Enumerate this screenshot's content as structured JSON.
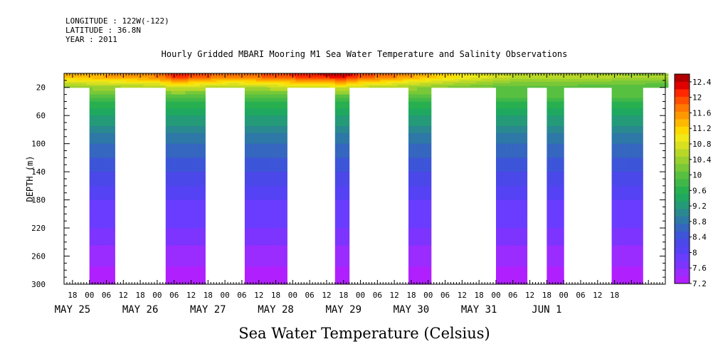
{
  "header": {
    "longitude": "LONGITUDE : 122W(-122)",
    "latitude": "LATITUDE : 36.8N",
    "year": "YEAR : 2011"
  },
  "chart_data": {
    "type": "heatmap",
    "title": "Hourly Gridded MBARI Mooring M1 Sea Water Temperature and Salinity Observations",
    "xlabel": "",
    "ylabel": "DEPTH (m)",
    "colorbar_label": "Sea Water Temperature (Celsius)",
    "x_hour_ticks": [
      "18",
      "00",
      "06",
      "12",
      "18",
      "00",
      "06",
      "12",
      "18",
      "00",
      "06",
      "12",
      "18",
      "00",
      "06",
      "12",
      "18",
      "00",
      "06",
      "12",
      "18",
      "00",
      "06",
      "12",
      "18",
      "00",
      "06",
      "12",
      "18",
      "00",
      "06",
      "12",
      "18"
    ],
    "x_date_labels": [
      "MAY 25",
      "MAY 26",
      "MAY 27",
      "MAY 28",
      "MAY 29",
      "MAY 30",
      "MAY 31",
      "JUN  1"
    ],
    "x_range_hours": [
      -9,
      204
    ],
    "ylim": [
      300,
      0
    ],
    "y_ticks": [
      "20",
      "60",
      "100",
      "140",
      "180",
      "220",
      "260",
      "300"
    ],
    "y_values": [
      20,
      60,
      100,
      140,
      180,
      220,
      260,
      300
    ],
    "colorbar": {
      "levels": [
        7.2,
        7.4,
        7.6,
        7.8,
        8.0,
        8.2,
        8.4,
        8.6,
        8.8,
        9.0,
        9.2,
        9.4,
        9.6,
        9.8,
        10.0,
        10.2,
        10.4,
        10.6,
        10.8,
        11.0,
        11.2,
        11.4,
        11.6,
        11.8,
        12.0,
        12.2,
        12.4,
        12.6
      ],
      "labels": [
        "12.4",
        "12",
        "11.6",
        "11.2",
        "10.8",
        "10.4",
        "10",
        "9.6",
        "9.2",
        "8.8",
        "8.4",
        "8",
        "7.6",
        "7.2"
      ],
      "colors": [
        "#b020ff",
        "#9b2cff",
        "#7d34ff",
        "#6a3cff",
        "#5542f5",
        "#4a48e8",
        "#3d55d8",
        "#3566c0",
        "#2e78a8",
        "#2a8890",
        "#249a78",
        "#1ea860",
        "#28b050",
        "#40b848",
        "#58c040",
        "#78c838",
        "#98d030",
        "#b8d828",
        "#d8e020",
        "#f0e818",
        "#ffd800",
        "#ffb800",
        "#ff9800",
        "#ff7800",
        "#ff5000",
        "#ff2800",
        "#e00000",
        "#b00000"
      ]
    },
    "data_segments": [
      {
        "start_hour": 0,
        "end_hour": 9,
        "top_depth": 5
      },
      {
        "start_hour": 27,
        "end_hour": 41,
        "top_depth": 5
      },
      {
        "start_hour": 55,
        "end_hour": 70,
        "top_depth": 5
      },
      {
        "start_hour": 87,
        "end_hour": 92,
        "top_depth": 5
      },
      {
        "start_hour": 113,
        "end_hour": 121,
        "top_depth": 5
      },
      {
        "start_hour": 144,
        "end_hour": 155,
        "top_depth": 5
      },
      {
        "start_hour": 162,
        "end_hour": 168,
        "top_depth": 5
      },
      {
        "start_hour": 185,
        "end_hour": 196,
        "top_depth": 5
      }
    ],
    "surface_temperature_series": [
      {
        "hour": -9,
        "value": 11.4
      },
      {
        "hour": 24,
        "value": 11.8
      },
      {
        "hour": 30,
        "value": 12.4
      },
      {
        "hour": 50,
        "value": 11.8
      },
      {
        "hour": 90,
        "value": 12.6
      },
      {
        "hour": 96,
        "value": 12.2
      },
      {
        "hour": 120,
        "value": 11.4
      },
      {
        "hour": 150,
        "value": 10.6
      },
      {
        "hour": 170,
        "value": 10.6
      },
      {
        "hour": 204,
        "value": 10.4
      }
    ],
    "depth_profile": [
      {
        "depth": 5,
        "value": 11.8
      },
      {
        "depth": 12,
        "value": 11.2
      },
      {
        "depth": 20,
        "value": 10.6
      },
      {
        "depth": 40,
        "value": 9.8
      },
      {
        "depth": 60,
        "value": 9.4
      },
      {
        "depth": 100,
        "value": 8.8
      },
      {
        "depth": 140,
        "value": 8.4
      },
      {
        "depth": 180,
        "value": 8.0
      },
      {
        "depth": 220,
        "value": 7.8
      },
      {
        "depth": 260,
        "value": 7.5
      },
      {
        "depth": 300,
        "value": 7.2
      }
    ]
  }
}
